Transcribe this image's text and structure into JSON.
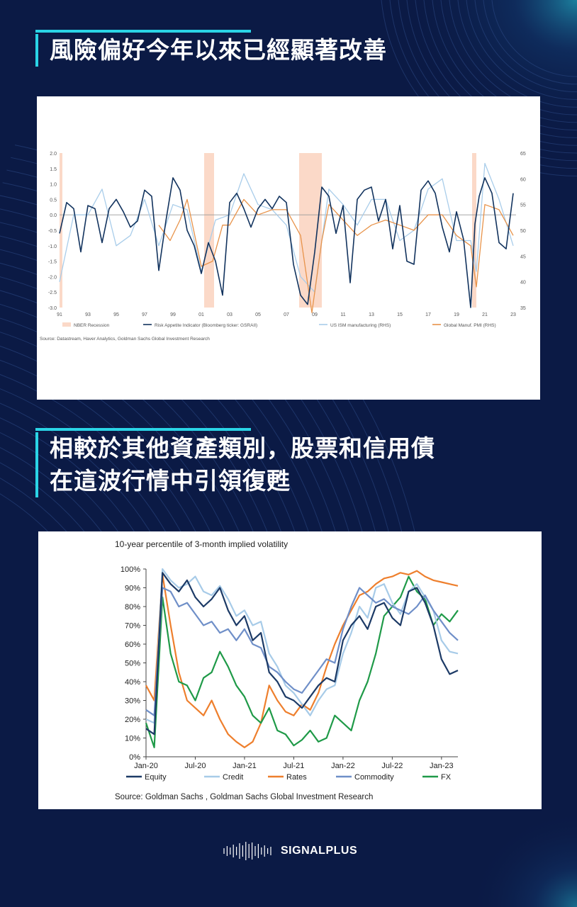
{
  "headings": {
    "h1": "風險偏好今年以來已經顯著改善",
    "h2_line1": "相較於其他資產類別，股票和信用債",
    "h2_line2": "在這波行情中引領復甦"
  },
  "brand": {
    "name": "SIGNALPLUS",
    "logo_icon": "soundwave-icon"
  },
  "colors": {
    "background": "#0b1a45",
    "accent": "#2ad4e6",
    "recession": "#fbd9c8",
    "risk_appetite": "#12335e",
    "ism": "#a9cdea",
    "global_pmi": "#e8934a",
    "equity": "#1c3a66",
    "credit": "#a7cbe8",
    "rates": "#ee7f2d",
    "commodity": "#6f8fc8",
    "fx": "#1f9a48"
  },
  "chart_data": [
    {
      "type": "line",
      "title": "",
      "x_ticks": [
        "91",
        "93",
        "95",
        "97",
        "99",
        "01",
        "03",
        "05",
        "07",
        "09",
        "11",
        "13",
        "15",
        "17",
        "19",
        "21",
        "23"
      ],
      "x_range": [
        1991,
        2023.2
      ],
      "y_left_ticks": [
        "2.0",
        "1.5",
        "1.0",
        "0.5",
        "0.0",
        "-0.5",
        "-1.0",
        "-1.5",
        "-2.0",
        "-2.5",
        "-3.0"
      ],
      "ylim_left": [
        -3.0,
        2.0
      ],
      "y_right_ticks": [
        "65",
        "60",
        "55",
        "50",
        "45",
        "40",
        "35"
      ],
      "ylim_right": [
        35,
        65
      ],
      "recessions": [
        [
          1990.6,
          1991.2
        ],
        [
          2001.2,
          2001.9
        ],
        [
          2007.9,
          2009.5
        ],
        [
          2020.1,
          2020.4
        ]
      ],
      "legend": [
        "NBER Recession",
        "Risk Appetite Indicator (Bloomberg ticker: GSRAII)",
        "US ISM manufacturing (RHS)",
        "Global Manuf. PMI (RHS)"
      ],
      "series": [
        {
          "name": "Risk Appetite Indicator (Bloomberg ticker: GSRAII)",
          "axis": "left",
          "x": [
            1991,
            1991.5,
            1992,
            1992.5,
            1993,
            1993.5,
            1994,
            1994.5,
            1995,
            1995.5,
            1996,
            1996.5,
            1997,
            1997.5,
            1998,
            1998.5,
            1999,
            1999.5,
            2000,
            2000.5,
            2001,
            2001.5,
            2002,
            2002.5,
            2003,
            2003.5,
            2004,
            2004.5,
            2005,
            2005.5,
            2006,
            2006.5,
            2007,
            2007.5,
            2008,
            2008.5,
            2009,
            2009.5,
            2010,
            2010.5,
            2011,
            2011.5,
            2012,
            2012.5,
            2013,
            2013.5,
            2014,
            2014.5,
            2015,
            2015.5,
            2016,
            2016.5,
            2017,
            2017.5,
            2018,
            2018.5,
            2019,
            2019.5,
            2020,
            2020.3,
            2020.6,
            2021,
            2021.5,
            2022,
            2022.5,
            2023
          ],
          "y": [
            -0.6,
            0.4,
            0.2,
            -1.2,
            0.3,
            0.2,
            -0.9,
            0.2,
            0.5,
            0.1,
            -0.4,
            -0.2,
            0.8,
            0.6,
            -1.8,
            -0.2,
            1.2,
            0.8,
            -0.5,
            -1.0,
            -1.9,
            -0.9,
            -1.5,
            -2.6,
            0.4,
            0.7,
            0.2,
            -0.4,
            0.2,
            0.5,
            0.2,
            0.6,
            0.4,
            -1.6,
            -2.6,
            -2.9,
            -1.2,
            0.9,
            0.6,
            -0.6,
            0.3,
            -2.2,
            0.5,
            0.8,
            0.9,
            -0.2,
            0.5,
            -1.1,
            0.3,
            -1.5,
            -1.6,
            0.8,
            1.1,
            0.7,
            -0.4,
            -1.2,
            0.1,
            -0.8,
            -3.0,
            -0.3,
            0.6,
            1.2,
            0.7,
            -0.9,
            -1.1,
            0.7
          ]
        },
        {
          "name": "US ISM manufacturing (RHS)",
          "axis": "right",
          "x": [
            1991,
            1992,
            1993,
            1994,
            1995,
            1996,
            1997,
            1998,
            1999,
            2000,
            2001,
            2002,
            2003,
            2004,
            2005,
            2006,
            2007,
            2008,
            2009,
            2010,
            2011,
            2012,
            2013,
            2014,
            2015,
            2016,
            2017,
            2018,
            2019,
            2020,
            2020.4,
            2021,
            2022,
            2023
          ],
          "y": [
            40,
            53,
            53,
            58,
            47,
            49,
            56,
            47,
            55,
            54,
            42,
            52,
            53,
            61,
            55,
            54,
            51,
            41,
            38,
            58,
            55,
            51,
            56,
            56,
            48,
            50,
            58,
            60,
            48,
            48,
            42,
            63,
            56,
            47
          ]
        },
        {
          "name": "Global Manuf. PMI (RHS)",
          "axis": "right",
          "x": [
            1998,
            1998.8,
            1999.5,
            2000,
            2001,
            2001.8,
            2002.5,
            2003,
            2004,
            2005,
            2006,
            2007,
            2008,
            2008.8,
            2009.5,
            2010,
            2011,
            2012,
            2013,
            2014,
            2015,
            2016,
            2017,
            2018,
            2019,
            2020,
            2020.4,
            2021,
            2022,
            2023
          ],
          "y": [
            51,
            48,
            52,
            56,
            43,
            44,
            51,
            51,
            56,
            53,
            54,
            54,
            49,
            34,
            48,
            55,
            52,
            49,
            51,
            52,
            51,
            50,
            53,
            53,
            49,
            47,
            39,
            55,
            54,
            49
          ]
        }
      ],
      "source": "Source: Datastream, Haver Analytics, Goldman Sachs Global Investment Research"
    },
    {
      "type": "line",
      "title": "10-year percentile of 3-month implied volatility",
      "x_ticks": [
        "Jan-20",
        "Jul-20",
        "Jan-21",
        "Jul-21",
        "Jan-22",
        "Jul-22",
        "Jan-23"
      ],
      "x_range": [
        "2020-01",
        "2023-03"
      ],
      "y_ticks": [
        "0%",
        "10%",
        "20%",
        "30%",
        "40%",
        "50%",
        "60%",
        "70%",
        "80%",
        "90%",
        "100%"
      ],
      "ylim": [
        0,
        100
      ],
      "legend_position": "bottom",
      "series": [
        {
          "name": "Equity",
          "x": [
            "2020-01",
            "2020-02",
            "2020-03",
            "2020-04",
            "2020-05",
            "2020-06",
            "2020-07",
            "2020-08",
            "2020-09",
            "2020-10",
            "2020-11",
            "2020-12",
            "2021-01",
            "2021-02",
            "2021-03",
            "2021-04",
            "2021-05",
            "2021-06",
            "2021-07",
            "2021-08",
            "2021-09",
            "2021-10",
            "2021-11",
            "2021-12",
            "2022-01",
            "2022-02",
            "2022-03",
            "2022-04",
            "2022-05",
            "2022-06",
            "2022-07",
            "2022-08",
            "2022-09",
            "2022-10",
            "2022-11",
            "2022-12",
            "2023-01",
            "2023-02",
            "2023-03"
          ],
          "y": [
            15,
            12,
            98,
            92,
            88,
            94,
            85,
            80,
            84,
            90,
            78,
            70,
            75,
            62,
            66,
            45,
            40,
            32,
            30,
            26,
            32,
            38,
            42,
            40,
            62,
            70,
            75,
            68,
            80,
            82,
            74,
            70,
            88,
            90,
            82,
            70,
            52,
            44,
            46
          ]
        },
        {
          "name": "Credit",
          "x": [
            "2020-01",
            "2020-02",
            "2020-03",
            "2020-04",
            "2020-05",
            "2020-06",
            "2020-07",
            "2020-08",
            "2020-09",
            "2020-10",
            "2020-11",
            "2020-12",
            "2021-01",
            "2021-02",
            "2021-03",
            "2021-04",
            "2021-05",
            "2021-06",
            "2021-07",
            "2021-08",
            "2021-09",
            "2021-10",
            "2021-11",
            "2021-12",
            "2022-01",
            "2022-02",
            "2022-03",
            "2022-04",
            "2022-05",
            "2022-06",
            "2022-07",
            "2022-08",
            "2022-09",
            "2022-10",
            "2022-11",
            "2022-12",
            "2023-01",
            "2023-02",
            "2023-03"
          ],
          "y": [
            20,
            18,
            100,
            94,
            90,
            92,
            96,
            88,
            86,
            91,
            84,
            75,
            78,
            70,
            72,
            55,
            48,
            38,
            34,
            28,
            22,
            30,
            36,
            38,
            55,
            66,
            80,
            74,
            90,
            92,
            82,
            76,
            88,
            92,
            85,
            78,
            62,
            56,
            55
          ]
        },
        {
          "name": "Rates",
          "x": [
            "2020-01",
            "2020-02",
            "2020-03",
            "2020-04",
            "2020-05",
            "2020-06",
            "2020-07",
            "2020-08",
            "2020-09",
            "2020-10",
            "2020-11",
            "2020-12",
            "2021-01",
            "2021-02",
            "2021-03",
            "2021-04",
            "2021-05",
            "2021-06",
            "2021-07",
            "2021-08",
            "2021-09",
            "2021-10",
            "2021-11",
            "2021-12",
            "2022-01",
            "2022-02",
            "2022-03",
            "2022-04",
            "2022-05",
            "2022-06",
            "2022-07",
            "2022-08",
            "2022-09",
            "2022-10",
            "2022-11",
            "2022-12",
            "2023-01",
            "2023-02",
            "2023-03"
          ],
          "y": [
            38,
            30,
            97,
            70,
            45,
            30,
            26,
            22,
            30,
            20,
            12,
            8,
            5,
            8,
            18,
            38,
            30,
            24,
            22,
            28,
            25,
            34,
            48,
            60,
            70,
            78,
            86,
            88,
            92,
            95,
            96,
            98,
            97,
            99,
            96,
            94,
            93,
            92,
            91
          ]
        },
        {
          "name": "Commodity",
          "x": [
            "2020-01",
            "2020-02",
            "2020-03",
            "2020-04",
            "2020-05",
            "2020-06",
            "2020-07",
            "2020-08",
            "2020-09",
            "2020-10",
            "2020-11",
            "2020-12",
            "2021-01",
            "2021-02",
            "2021-03",
            "2021-04",
            "2021-05",
            "2021-06",
            "2021-07",
            "2021-08",
            "2021-09",
            "2021-10",
            "2021-11",
            "2021-12",
            "2022-01",
            "2022-02",
            "2022-03",
            "2022-04",
            "2022-05",
            "2022-06",
            "2022-07",
            "2022-08",
            "2022-09",
            "2022-10",
            "2022-11",
            "2022-12",
            "2023-01",
            "2023-02",
            "2023-03"
          ],
          "y": [
            25,
            22,
            90,
            88,
            80,
            82,
            76,
            70,
            72,
            66,
            68,
            62,
            68,
            60,
            58,
            48,
            45,
            40,
            36,
            34,
            40,
            46,
            52,
            50,
            68,
            80,
            90,
            86,
            82,
            84,
            80,
            78,
            76,
            80,
            86,
            78,
            72,
            66,
            62
          ]
        },
        {
          "name": "FX",
          "x": [
            "2020-01",
            "2020-02",
            "2020-03",
            "2020-04",
            "2020-05",
            "2020-06",
            "2020-07",
            "2020-08",
            "2020-09",
            "2020-10",
            "2020-11",
            "2020-12",
            "2021-01",
            "2021-02",
            "2021-03",
            "2021-04",
            "2021-05",
            "2021-06",
            "2021-07",
            "2021-08",
            "2021-09",
            "2021-10",
            "2021-11",
            "2021-12",
            "2022-01",
            "2022-02",
            "2022-03",
            "2022-04",
            "2022-05",
            "2022-06",
            "2022-07",
            "2022-08",
            "2022-09",
            "2022-10",
            "2022-11",
            "2022-12",
            "2023-01",
            "2023-02",
            "2023-03"
          ],
          "y": [
            18,
            5,
            85,
            55,
            40,
            38,
            30,
            42,
            45,
            56,
            48,
            38,
            32,
            22,
            18,
            26,
            14,
            12,
            6,
            9,
            14,
            8,
            10,
            22,
            18,
            14,
            30,
            40,
            55,
            75,
            80,
            85,
            96,
            88,
            84,
            70,
            76,
            72,
            78
          ]
        }
      ],
      "source": "Source: Goldman Sachs , Goldman Sachs Global Investment Research"
    }
  ]
}
